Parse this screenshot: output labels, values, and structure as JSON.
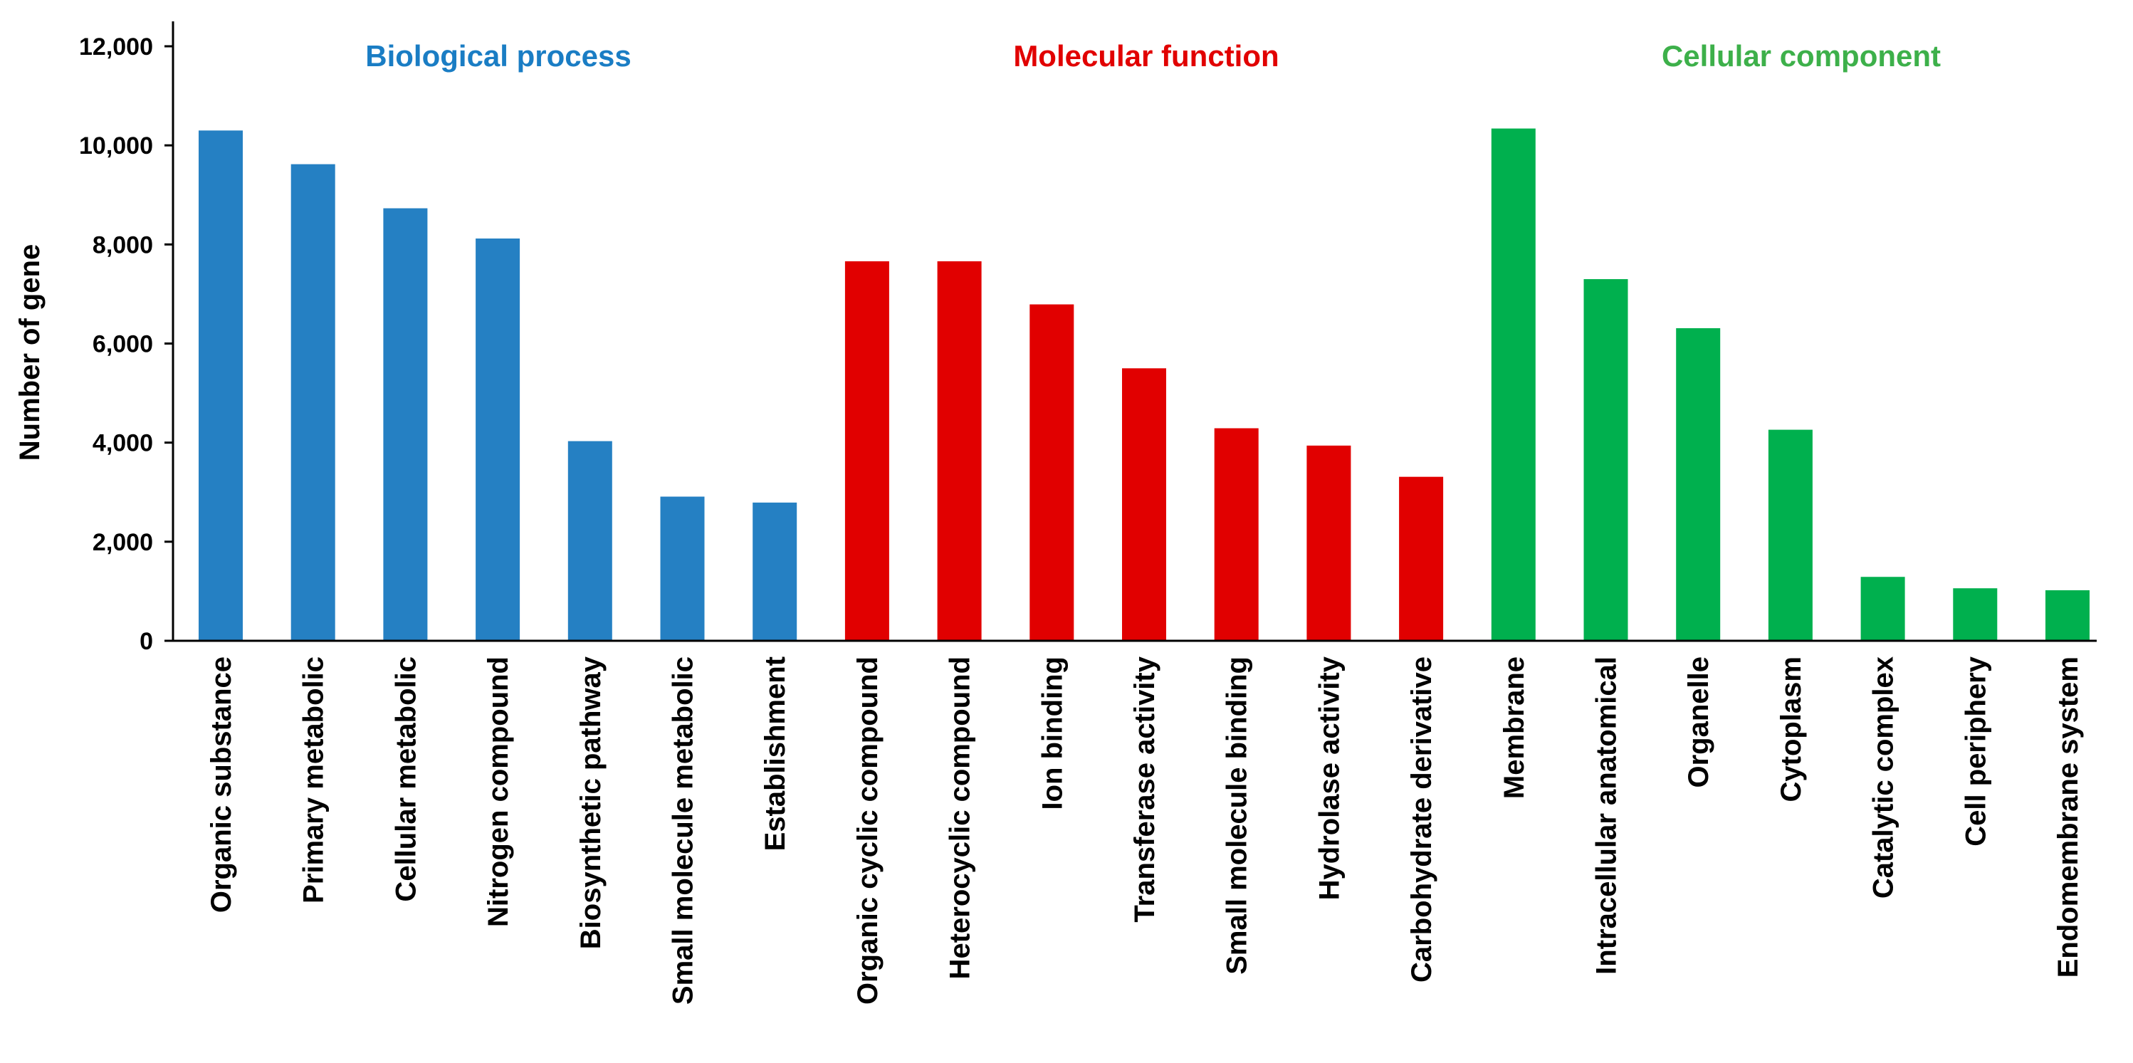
{
  "chart_data": {
    "type": "bar",
    "title": "",
    "xlabel": "",
    "ylabel": "Number of gene",
    "ylim": [
      0,
      12000
    ],
    "yticks": [
      "0",
      "2,000",
      "4,000",
      "6,000",
      "8,000",
      "10,000",
      "12,000"
    ],
    "grid": false,
    "series": [
      {
        "name": "Biological process",
        "color": "#2580C3",
        "categories": [
          "Organic substance",
          "Primary metabolic",
          "Cellular metabolic",
          "Nitrogen compound",
          "Biosynthetic pathway",
          "Small molecule metabolic",
          "Establishment"
        ],
        "values": [
          10300,
          9620,
          8730,
          8120,
          4030,
          2910,
          2790
        ]
      },
      {
        "name": "Molecular function",
        "color": "#E10000",
        "categories": [
          "Organic cyclic compound",
          "Heterocyclic compound",
          "Ion binding",
          "Transferase activity",
          "Small molecule binding",
          "Hydrolase activity",
          "Carbohydrate derivative"
        ],
        "values": [
          7660,
          7660,
          6790,
          5500,
          4290,
          3940,
          3310
        ]
      },
      {
        "name": "Cellular component",
        "color": "#00B04E",
        "categories": [
          "Membrane",
          "Intracellular anatomical",
          "Organelle",
          "Cytoplasm",
          "Catalytic complex",
          "Cell periphery",
          "Endomembrane system"
        ],
        "values": [
          10340,
          7300,
          6310,
          4260,
          1290,
          1060,
          1020
        ]
      }
    ]
  }
}
